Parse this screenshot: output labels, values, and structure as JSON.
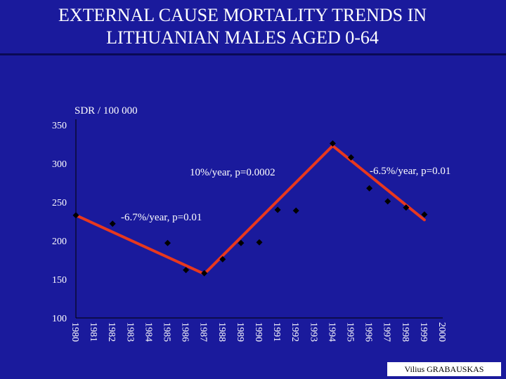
{
  "slide": {
    "title_line1": "EXTERNAL CAUSE MORTALITY  TRENDS IN",
    "title_line2": "LITHUANIAN MALES AGED 0-64",
    "footer": "Vilius GRABAUSKAS"
  },
  "colors": {
    "background": "#1a1a9c",
    "text": "#ffffff",
    "points": "#000000",
    "trend": "#e8381e"
  },
  "chart_data": {
    "type": "scatter",
    "title": "EXTERNAL CAUSE MORTALITY  TRENDS IN LITHUANIAN MALES AGED 0-64",
    "ylabel": "SDR / 100 000",
    "xlabel": "",
    "ylim": [
      100,
      350
    ],
    "yticks": [
      100,
      150,
      200,
      250,
      300,
      350
    ],
    "categories": [
      "1980",
      "1981",
      "1982",
      "1983",
      "1984",
      "1985",
      "1986",
      "1987",
      "1988",
      "1989",
      "1990",
      "1991",
      "1992",
      "1993",
      "1994",
      "1995",
      "1996",
      "1997",
      "1998",
      "1999",
      "2000"
    ],
    "points": [
      {
        "x": "1980",
        "y": 233
      },
      {
        "x": "1982",
        "y": 222
      },
      {
        "x": "1985",
        "y": 197
      },
      {
        "x": "1986",
        "y": 162
      },
      {
        "x": "1987",
        "y": 158
      },
      {
        "x": "1988",
        "y": 176
      },
      {
        "x": "1989",
        "y": 197
      },
      {
        "x": "1990",
        "y": 198
      },
      {
        "x": "1991",
        "y": 240
      },
      {
        "x": "1992",
        "y": 239
      },
      {
        "x": "1994",
        "y": 326
      },
      {
        "x": "1995",
        "y": 308
      },
      {
        "x": "1996",
        "y": 268
      },
      {
        "x": "1997",
        "y": 251
      },
      {
        "x": "1998",
        "y": 243
      },
      {
        "x": "1999",
        "y": 234
      }
    ],
    "trend_lines": [
      {
        "label": "-6.7%/year, p=0.01",
        "from": {
          "x": "1980",
          "y": 233
        },
        "to": {
          "x": "1987",
          "y": 157
        }
      },
      {
        "label": "10%/year, p=0.0002",
        "from": {
          "x": "1987",
          "y": 157
        },
        "to": {
          "x": "1994",
          "y": 323
        }
      },
      {
        "label": "-6.5%/year, p=0.01",
        "from": {
          "x": "1994",
          "y": 323
        },
        "to": {
          "x": "1999",
          "y": 227
        }
      }
    ]
  }
}
